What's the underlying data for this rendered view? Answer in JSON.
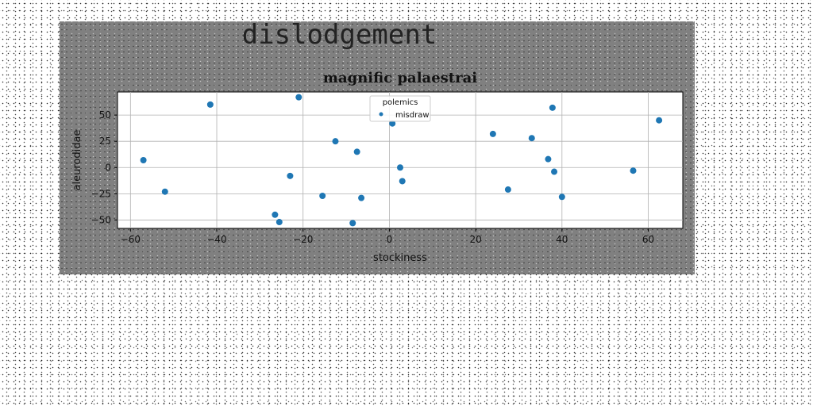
{
  "suptitle": "dislodgement",
  "chart_data": {
    "type": "scatter",
    "title": "magnific palaestrai",
    "xlabel": "stockiness",
    "ylabel": "aleurodidae",
    "xlim": [
      -63,
      68
    ],
    "ylim": [
      -58,
      72
    ],
    "xticks": [
      -60,
      -40,
      -20,
      0,
      20,
      40,
      60
    ],
    "yticks": [
      -50,
      -25,
      0,
      25,
      50
    ],
    "grid": true,
    "legend": {
      "title": "polemics",
      "position": "upper center"
    },
    "series": [
      {
        "name": "misdraw",
        "color": "#1f77b4",
        "x": [
          -57,
          -52,
          -41.5,
          -21,
          -25.5,
          -23,
          -26.5,
          -15.5,
          -12.5,
          -8.5,
          -7.5,
          -6.5,
          0.7,
          2.5,
          3,
          24,
          27.5,
          33,
          36.8,
          37.8,
          38.2,
          40,
          56.5,
          62.5
        ],
        "y": [
          7,
          -23,
          60,
          67,
          -52,
          -8,
          -45,
          -27,
          25,
          -53,
          15,
          -29,
          42,
          0,
          -13,
          32,
          -21,
          28,
          8,
          57,
          -4,
          -28,
          -3,
          45
        ]
      }
    ]
  }
}
